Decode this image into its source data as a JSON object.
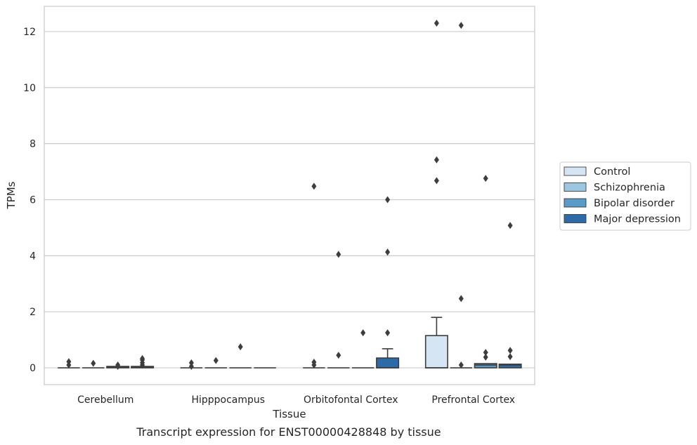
{
  "chart_data": {
    "type": "box",
    "title": "Transcript expression for ENST00000428848 by tissue",
    "xlabel": "Tissue",
    "ylabel": "TPMs",
    "ylim": [
      -0.6,
      12.9
    ],
    "yticks": [
      0,
      2,
      4,
      6,
      8,
      10,
      12
    ],
    "grid": true,
    "legend_position": "right",
    "categories": [
      "Cerebellum",
      "Hipppocampus",
      "Orbitofontal Cortex",
      "Prefrontal Cortex"
    ],
    "series": [
      {
        "name": "Control",
        "color": "#d6e5f4",
        "boxes": [
          {
            "q1": 0,
            "median": 0,
            "q3": 0,
            "whisker_low": 0,
            "whisker_high": 0,
            "outliers": [
              0.1,
              0.22
            ]
          },
          {
            "q1": 0,
            "median": 0,
            "q3": 0,
            "whisker_low": 0,
            "whisker_high": 0,
            "outliers": [
              0.05,
              0.18
            ]
          },
          {
            "q1": 0,
            "median": 0,
            "q3": 0,
            "whisker_low": 0,
            "whisker_high": 0,
            "outliers": [
              0.1,
              0.2,
              6.48
            ]
          },
          {
            "q1": 0,
            "median": 0,
            "q3": 1.15,
            "whisker_low": 0,
            "whisker_high": 1.8,
            "outliers": [
              7.42,
              6.68,
              12.3
            ]
          }
        ]
      },
      {
        "name": "Schizophrenia",
        "color": "#9dc7e0",
        "boxes": [
          {
            "q1": 0,
            "median": 0,
            "q3": 0,
            "whisker_low": 0,
            "whisker_high": 0,
            "outliers": [
              0.16
            ]
          },
          {
            "q1": 0,
            "median": 0,
            "q3": 0,
            "whisker_low": 0,
            "whisker_high": 0,
            "outliers": [
              0.26
            ]
          },
          {
            "q1": 0,
            "median": 0,
            "q3": 0,
            "whisker_low": 0,
            "whisker_high": 0,
            "outliers": [
              0.45,
              4.05
            ]
          },
          {
            "q1": 0,
            "median": 0,
            "q3": 0,
            "whisker_low": 0,
            "whisker_high": 0,
            "outliers": [
              0.1,
              2.47,
              12.22
            ]
          }
        ]
      },
      {
        "name": "Bipolar disorder",
        "color": "#5a9bc9",
        "boxes": [
          {
            "q1": 0,
            "median": 0.02,
            "q3": 0.05,
            "whisker_low": 0,
            "whisker_high": 0.05,
            "outliers": [
              0.05,
              0.1
            ]
          },
          {
            "q1": 0,
            "median": 0,
            "q3": 0,
            "whisker_low": 0,
            "whisker_high": 0,
            "outliers": [
              0.75
            ]
          },
          {
            "q1": 0,
            "median": 0,
            "q3": 0,
            "whisker_low": 0,
            "whisker_high": 0,
            "outliers": [
              1.25
            ]
          },
          {
            "q1": 0,
            "median": 0.1,
            "q3": 0.15,
            "whisker_low": 0,
            "whisker_high": 0.15,
            "outliers": [
              0.38,
              0.55,
              6.76
            ]
          }
        ]
      },
      {
        "name": "Major depression",
        "color": "#2d6ba8",
        "boxes": [
          {
            "q1": 0,
            "median": 0.03,
            "q3": 0.05,
            "whisker_low": 0,
            "whisker_high": 0.05,
            "outliers": [
              0.1,
              0.18,
              0.28,
              0.33
            ]
          },
          {
            "q1": 0,
            "median": 0,
            "q3": 0,
            "whisker_low": 0,
            "whisker_high": 0,
            "outliers": []
          },
          {
            "q1": 0,
            "median": 0,
            "q3": 0.35,
            "whisker_low": 0,
            "whisker_high": 0.68,
            "outliers": [
              1.25,
              4.13,
              6.0
            ]
          },
          {
            "q1": 0,
            "median": 0.1,
            "q3": 0.13,
            "whisker_low": 0,
            "whisker_high": 0.13,
            "outliers": [
              0.4,
              0.62,
              5.08
            ]
          }
        ]
      }
    ]
  }
}
